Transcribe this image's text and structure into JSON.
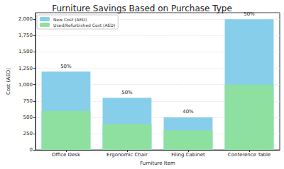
{
  "chart_data": {
    "type": "bar",
    "title": "Furniture Savings Based on Purchase Type",
    "x_label": "Furniture Item",
    "y_label": "Cost (AED)",
    "categories": [
      "Office Desk",
      "Ergonomic Chair",
      "Filing Cabinet",
      "Conference Table"
    ],
    "series": [
      {
        "name": "New Cost (AED)",
        "color": "#87ceeb",
        "values": [
          1200,
          800,
          500,
          2000
        ]
      },
      {
        "name": "Used/Refurbished Cost (AED)",
        "color": "#8de0a0",
        "values": [
          600,
          400,
          300,
          1000
        ]
      }
    ],
    "annotations": [
      "50%",
      "50%",
      "40%",
      "50%"
    ],
    "ylim": [
      0,
      2100
    ],
    "yticks": [
      0,
      250,
      500,
      750,
      1000,
      1250,
      1500,
      1750,
      2000
    ],
    "grid": true,
    "legend": "upper left"
  }
}
